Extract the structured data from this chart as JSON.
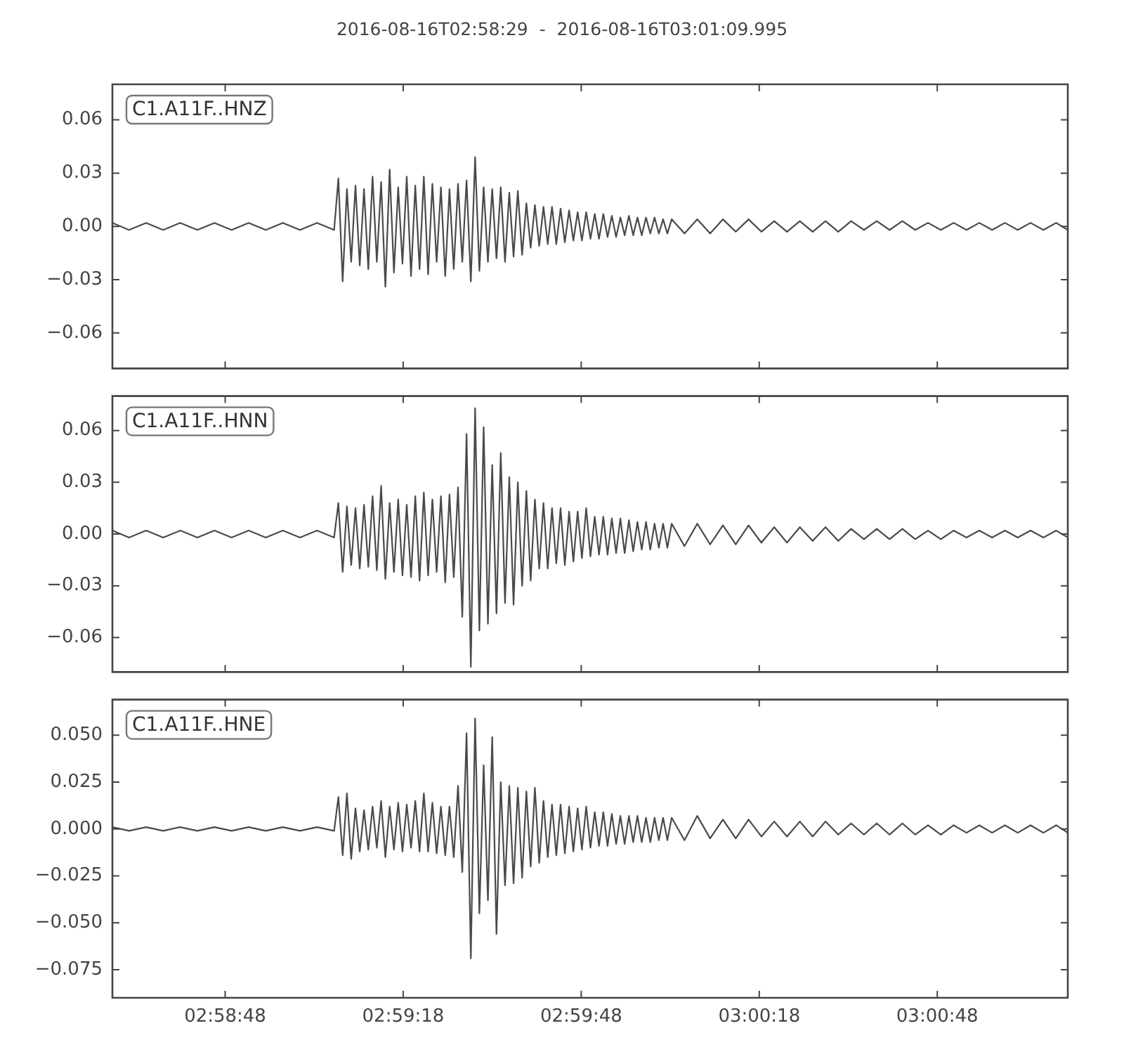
{
  "chart_data": [
    {
      "type": "line",
      "title": "2016-08-16T02:58:29  -  2016-08-16T03:01:09.995",
      "annotations": [
        "C1.A11F..HNZ"
      ],
      "tick_labels": "y",
      "xlim": [
        2.974722,
        3.019443
      ],
      "xticks": [
        {
          "value": 2.98,
          "label": null
        },
        {
          "value": 2.988333,
          "label": null
        },
        {
          "value": 2.996667,
          "label": null
        },
        {
          "value": 3.005,
          "label": null
        },
        {
          "value": 3.013333,
          "label": null
        }
      ],
      "ylim": [
        -0.08,
        0.08
      ],
      "yticks": [
        {
          "value": 0.06,
          "label": "0.06"
        },
        {
          "value": 0.03,
          "label": "0.03"
        },
        {
          "value": 0,
          "label": "0.00"
        },
        {
          "value": -0.03,
          "label": "−0.03"
        },
        {
          "value": -0.06,
          "label": "−0.06"
        }
      ],
      "x": [
        2.974722,
        2.9755,
        2.9763,
        2.9771,
        2.9779,
        2.9787,
        2.9795,
        2.9803,
        2.9811,
        2.9819,
        2.9827,
        2.9835,
        2.9843,
        2.9851,
        2.9853,
        2.9855,
        2.9857,
        2.9859,
        2.9861,
        2.9863,
        2.9865,
        2.9867,
        2.9869,
        2.9871,
        2.9873,
        2.9875,
        2.9877,
        2.9879,
        2.9881,
        2.9883,
        2.9885,
        2.9887,
        2.9889,
        2.9891,
        2.9893,
        2.9895,
        2.9897,
        2.9899,
        2.9901,
        2.9903,
        2.9905,
        2.9907,
        2.9909,
        2.9911,
        2.9913,
        2.9915,
        2.9917,
        2.9919,
        2.9921,
        2.9923,
        2.9925,
        2.9927,
        2.9929,
        2.9931,
        2.9933,
        2.9935,
        2.9937,
        2.9939,
        2.9941,
        2.9943,
        2.9945,
        2.9947,
        2.9949,
        2.9951,
        2.9953,
        2.9955,
        2.9957,
        2.9959,
        2.9961,
        2.9963,
        2.9965,
        2.9967,
        2.9969,
        2.9971,
        2.9973,
        2.9975,
        2.9977,
        2.9979,
        2.9981,
        2.9983,
        2.9985,
        2.9987,
        2.9989,
        2.9991,
        2.9993,
        2.9995,
        2.9997,
        2.9999,
        3.0001,
        3.0003,
        3.0005,
        3.0007,
        3.0009,
        3.0015,
        3.0021,
        3.0027,
        3.0033,
        3.0039,
        3.0045,
        3.0051,
        3.0057,
        3.0063,
        3.0069,
        3.0075,
        3.0081,
        3.0087,
        3.0093,
        3.0099,
        3.0105,
        3.0111,
        3.0117,
        3.0123,
        3.0129,
        3.0135,
        3.0141,
        3.0147,
        3.0153,
        3.0159,
        3.0165,
        3.0171,
        3.0177,
        3.0183,
        3.0189,
        3.019443
      ],
      "series": [
        {
          "color": "#4a4a4a",
          "values": [
            0.002,
            -0.002,
            0.002,
            -0.002,
            0.002,
            -0.002,
            0.002,
            -0.002,
            0.002,
            -0.002,
            0.002,
            -0.002,
            0.002,
            -0.002,
            0.027,
            -0.031,
            0.021,
            -0.02,
            0.023,
            -0.022,
            0.021,
            -0.024,
            0.028,
            -0.02,
            0.025,
            -0.034,
            0.032,
            -0.026,
            0.022,
            -0.021,
            0.028,
            -0.028,
            0.023,
            -0.024,
            0.028,
            -0.027,
            0.024,
            -0.02,
            0.022,
            -0.028,
            0.021,
            -0.024,
            0.024,
            -0.02,
            0.026,
            -0.031,
            0.039,
            -0.025,
            0.022,
            -0.02,
            0.021,
            -0.018,
            0.022,
            -0.02,
            0.019,
            -0.017,
            0.02,
            -0.016,
            0.013,
            -0.012,
            0.012,
            -0.011,
            0.011,
            -0.01,
            0.011,
            -0.01,
            0.01,
            -0.009,
            0.009,
            -0.008,
            0.008,
            -0.008,
            0.008,
            -0.007,
            0.007,
            -0.007,
            0.007,
            -0.006,
            0.006,
            -0.006,
            0.005,
            -0.005,
            0.006,
            -0.005,
            0.005,
            -0.005,
            0.005,
            -0.004,
            0.005,
            -0.004,
            0.004,
            -0.004,
            0.004,
            -0.004,
            0.004,
            -0.004,
            0.004,
            -0.003,
            0.004,
            -0.003,
            0.003,
            -0.003,
            0.003,
            -0.003,
            0.003,
            -0.003,
            0.003,
            -0.002,
            0.003,
            -0.002,
            0.003,
            -0.002,
            0.002,
            -0.002,
            0.002,
            -0.002,
            0.002,
            -0.002,
            0.002,
            -0.002,
            0.002,
            -0.002,
            0.002,
            -0.002
          ]
        }
      ]
    },
    {
      "type": "line",
      "annotations": [
        "C1.A11F..HNN"
      ],
      "tick_labels": "y",
      "xlim": [
        2.974722,
        3.019443
      ],
      "xticks": [
        {
          "value": 2.98,
          "label": null
        },
        {
          "value": 2.988333,
          "label": null
        },
        {
          "value": 2.996667,
          "label": null
        },
        {
          "value": 3.005,
          "label": null
        },
        {
          "value": 3.013333,
          "label": null
        }
      ],
      "ylim": [
        -0.08,
        0.08
      ],
      "yticks": [
        {
          "value": 0.06,
          "label": "0.06"
        },
        {
          "value": 0.03,
          "label": "0.03"
        },
        {
          "value": 0,
          "label": "0.00"
        },
        {
          "value": -0.03,
          "label": "−0.03"
        },
        {
          "value": -0.06,
          "label": "−0.06"
        }
      ],
      "x": [
        2.974722,
        2.9755,
        2.9763,
        2.9771,
        2.9779,
        2.9787,
        2.9795,
        2.9803,
        2.9811,
        2.9819,
        2.9827,
        2.9835,
        2.9843,
        2.9851,
        2.9853,
        2.9855,
        2.9857,
        2.9859,
        2.9861,
        2.9863,
        2.9865,
        2.9867,
        2.9869,
        2.9871,
        2.9873,
        2.9875,
        2.9877,
        2.9879,
        2.9881,
        2.9883,
        2.9885,
        2.9887,
        2.9889,
        2.9891,
        2.9893,
        2.9895,
        2.9897,
        2.9899,
        2.9901,
        2.9903,
        2.9905,
        2.9907,
        2.9909,
        2.9911,
        2.9913,
        2.9915,
        2.9917,
        2.9919,
        2.9921,
        2.9923,
        2.9925,
        2.9927,
        2.9929,
        2.9931,
        2.9933,
        2.9935,
        2.9937,
        2.9939,
        2.9941,
        2.9943,
        2.9945,
        2.9947,
        2.9949,
        2.9951,
        2.9953,
        2.9955,
        2.9957,
        2.9959,
        2.9961,
        2.9963,
        2.9965,
        2.9967,
        2.9969,
        2.9971,
        2.9973,
        2.9975,
        2.9977,
        2.9979,
        2.9981,
        2.9983,
        2.9985,
        2.9987,
        2.9989,
        2.9991,
        2.9993,
        2.9995,
        2.9997,
        2.9999,
        3.0001,
        3.0003,
        3.0005,
        3.0007,
        3.0009,
        3.0015,
        3.0021,
        3.0027,
        3.0033,
        3.0039,
        3.0045,
        3.0051,
        3.0057,
        3.0063,
        3.0069,
        3.0075,
        3.0081,
        3.0087,
        3.0093,
        3.0099,
        3.0105,
        3.0111,
        3.0117,
        3.0123,
        3.0129,
        3.0135,
        3.0141,
        3.0147,
        3.0153,
        3.0159,
        3.0165,
        3.0171,
        3.0177,
        3.0183,
        3.0189,
        3.019443
      ],
      "series": [
        {
          "color": "#4a4a4a",
          "values": [
            0.002,
            -0.002,
            0.002,
            -0.002,
            0.002,
            -0.002,
            0.002,
            -0.002,
            0.002,
            -0.002,
            0.002,
            -0.002,
            0.002,
            -0.002,
            0.018,
            -0.022,
            0.016,
            -0.018,
            0.015,
            -0.02,
            0.017,
            -0.019,
            0.022,
            -0.021,
            0.028,
            -0.026,
            0.018,
            -0.022,
            0.02,
            -0.024,
            0.017,
            -0.025,
            0.022,
            -0.027,
            0.024,
            -0.024,
            0.02,
            -0.022,
            0.022,
            -0.028,
            0.023,
            -0.025,
            0.027,
            -0.048,
            0.058,
            -0.077,
            0.073,
            -0.056,
            0.062,
            -0.052,
            0.04,
            -0.046,
            0.047,
            -0.04,
            0.033,
            -0.041,
            0.03,
            -0.03,
            0.025,
            -0.027,
            0.02,
            -0.02,
            0.018,
            -0.02,
            0.015,
            -0.017,
            0.015,
            -0.018,
            0.013,
            -0.016,
            0.013,
            -0.014,
            0.015,
            -0.013,
            0.01,
            -0.012,
            0.01,
            -0.012,
            0.009,
            -0.011,
            0.009,
            -0.011,
            0.008,
            -0.01,
            0.007,
            -0.009,
            0.007,
            -0.009,
            0.006,
            -0.008,
            0.006,
            -0.008,
            0.006,
            -0.007,
            0.006,
            -0.006,
            0.005,
            -0.006,
            0.005,
            -0.005,
            0.004,
            -0.005,
            0.004,
            -0.004,
            0.004,
            -0.004,
            0.003,
            -0.003,
            0.003,
            -0.003,
            0.003,
            -0.003,
            0.002,
            -0.003,
            0.002,
            -0.002,
            0.002,
            -0.002,
            0.002,
            -0.002,
            0.002,
            -0.002,
            0.002,
            -0.002
          ]
        }
      ]
    },
    {
      "type": "line",
      "annotations": [
        "C1.A11F..HNE"
      ],
      "xlim": [
        2.974722,
        3.019443
      ],
      "xticks": [
        {
          "value": 2.98,
          "label": "02:58:48"
        },
        {
          "value": 2.988333,
          "label": "02:59:18"
        },
        {
          "value": 2.996667,
          "label": "02:59:48"
        },
        {
          "value": 3.005,
          "label": "03:00:18"
        },
        {
          "value": 3.013333,
          "label": "03:00:48"
        }
      ],
      "ylim": [
        -0.09,
        0.069
      ],
      "yticks": [
        {
          "value": 0.05,
          "label": "0.050"
        },
        {
          "value": 0.025,
          "label": "0.025"
        },
        {
          "value": 0,
          "label": "0.000"
        },
        {
          "value": -0.025,
          "label": "−0.025"
        },
        {
          "value": -0.05,
          "label": "−0.050"
        },
        {
          "value": -0.075,
          "label": "−0.075"
        }
      ],
      "x": [
        2.974722,
        2.9755,
        2.9763,
        2.9771,
        2.9779,
        2.9787,
        2.9795,
        2.9803,
        2.9811,
        2.9819,
        2.9827,
        2.9835,
        2.9843,
        2.9851,
        2.9853,
        2.9855,
        2.9857,
        2.9859,
        2.9861,
        2.9863,
        2.9865,
        2.9867,
        2.9869,
        2.9871,
        2.9873,
        2.9875,
        2.9877,
        2.9879,
        2.9881,
        2.9883,
        2.9885,
        2.9887,
        2.9889,
        2.9891,
        2.9893,
        2.9895,
        2.9897,
        2.9899,
        2.9901,
        2.9903,
        2.9905,
        2.9907,
        2.9909,
        2.9911,
        2.9913,
        2.9915,
        2.9917,
        2.9919,
        2.9921,
        2.9923,
        2.9925,
        2.9927,
        2.9929,
        2.9931,
        2.9933,
        2.9935,
        2.9937,
        2.9939,
        2.9941,
        2.9943,
        2.9945,
        2.9947,
        2.9949,
        2.9951,
        2.9953,
        2.9955,
        2.9957,
        2.9959,
        2.9961,
        2.9963,
        2.9965,
        2.9967,
        2.9969,
        2.9971,
        2.9973,
        2.9975,
        2.9977,
        2.9979,
        2.9981,
        2.9983,
        2.9985,
        2.9987,
        2.9989,
        2.9991,
        2.9993,
        2.9995,
        2.9997,
        2.9999,
        3.0001,
        3.0003,
        3.0005,
        3.0007,
        3.0009,
        3.0015,
        3.0021,
        3.0027,
        3.0033,
        3.0039,
        3.0045,
        3.0051,
        3.0057,
        3.0063,
        3.0069,
        3.0075,
        3.0081,
        3.0087,
        3.0093,
        3.0099,
        3.0105,
        3.0111,
        3.0117,
        3.0123,
        3.0129,
        3.0135,
        3.0141,
        3.0147,
        3.0153,
        3.0159,
        3.0165,
        3.0171,
        3.0177,
        3.0183,
        3.0189,
        3.019443
      ],
      "series": [
        {
          "color": "#4a4a4a",
          "values": [
            0.001,
            -0.001,
            0.001,
            -0.001,
            0.001,
            -0.001,
            0.001,
            -0.001,
            0.001,
            -0.001,
            0.001,
            -0.001,
            0.001,
            -0.001,
            0.017,
            -0.014,
            0.019,
            -0.016,
            0.011,
            -0.012,
            0.01,
            -0.011,
            0.012,
            -0.01,
            0.015,
            -0.015,
            0.012,
            -0.011,
            0.014,
            -0.012,
            0.013,
            -0.01,
            0.015,
            -0.012,
            0.019,
            -0.012,
            0.014,
            -0.013,
            0.012,
            -0.014,
            0.012,
            -0.015,
            0.023,
            -0.023,
            0.051,
            -0.069,
            0.059,
            -0.045,
            0.034,
            -0.038,
            0.049,
            -0.056,
            0.025,
            -0.03,
            0.023,
            -0.029,
            0.022,
            -0.026,
            0.02,
            -0.02,
            0.022,
            -0.018,
            0.015,
            -0.015,
            0.013,
            -0.014,
            0.013,
            -0.013,
            0.012,
            -0.012,
            0.011,
            -0.011,
            0.012,
            -0.01,
            0.009,
            -0.009,
            0.009,
            -0.009,
            0.008,
            -0.008,
            0.007,
            -0.008,
            0.007,
            -0.007,
            0.007,
            -0.007,
            0.006,
            -0.007,
            0.006,
            -0.006,
            0.006,
            -0.006,
            0.006,
            -0.006,
            0.007,
            -0.005,
            0.005,
            -0.005,
            0.005,
            -0.004,
            0.004,
            -0.004,
            0.004,
            -0.004,
            0.004,
            -0.003,
            0.003,
            -0.003,
            0.003,
            -0.003,
            0.003,
            -0.003,
            0.002,
            -0.003,
            0.002,
            -0.002,
            0.002,
            -0.002,
            0.002,
            -0.002,
            0.002,
            -0.002,
            0.002,
            -0.002
          ]
        }
      ]
    }
  ]
}
